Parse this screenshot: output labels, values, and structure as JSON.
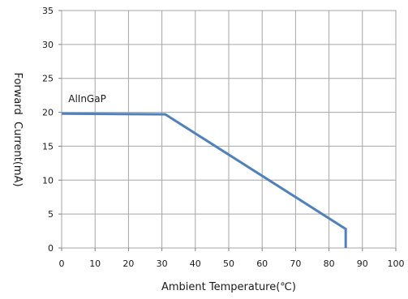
{
  "chart_data": {
    "type": "line",
    "xlabel": "Ambient Temperature(℃)",
    "ylabel": "Forward  Current(mA)",
    "xlim": [
      0,
      100
    ],
    "ylim": [
      0,
      35
    ],
    "xticks": [
      "0",
      "10",
      "20",
      "30",
      "40",
      "50",
      "60",
      "70",
      "80",
      "90",
      "100"
    ],
    "yticks": [
      "0",
      "5",
      "10",
      "15",
      "20",
      "25",
      "30",
      "35"
    ],
    "grid": true,
    "series": [
      {
        "name": "AlInGaP",
        "x": [
          0,
          31,
          85,
          85
        ],
        "y": [
          19.8,
          19.7,
          2.8,
          0
        ],
        "color": "#4f81bd"
      }
    ],
    "annotation": {
      "text": "AlInGaP",
      "x": 2,
      "y": 21.5
    }
  }
}
